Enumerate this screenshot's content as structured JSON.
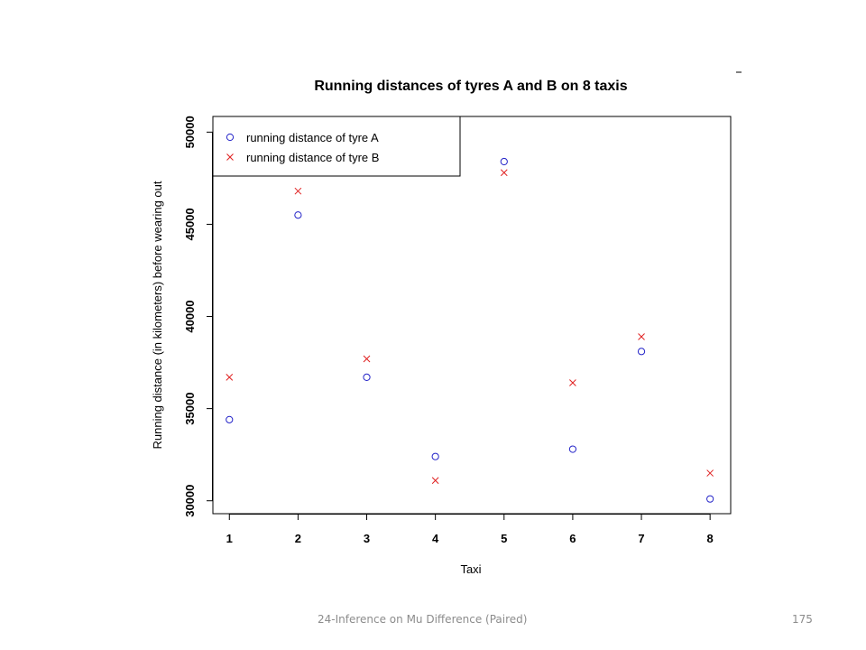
{
  "chart_data": {
    "type": "scatter",
    "title": "Running distances of tyres A and B on 8 taxis",
    "xlabel": "Taxi",
    "ylabel": "Running distance (in kilometers) before wearing out",
    "x": [
      1,
      2,
      3,
      4,
      5,
      6,
      7,
      8
    ],
    "x_ticks": [
      "1",
      "2",
      "3",
      "4",
      "5",
      "6",
      "7",
      "8"
    ],
    "y_ticks": [
      "30000",
      "35000",
      "40000",
      "45000",
      "50000"
    ],
    "xlim": [
      0.76,
      8.3
    ],
    "ylim": [
      29300,
      50850
    ],
    "legend_position": "top-left",
    "grid": false,
    "series": [
      {
        "name": "running distance of tyre A",
        "marker": "circle",
        "color": "#2323c8",
        "values": [
          34400,
          45500,
          36700,
          32400,
          48400,
          32800,
          38100,
          30100
        ]
      },
      {
        "name": "running distance of tyre B",
        "marker": "cross",
        "color": "#e02020",
        "values": [
          36700,
          46800,
          37700,
          31100,
          47800,
          36400,
          38900,
          31500
        ]
      }
    ]
  },
  "footer": {
    "text": "24-Inference on Mu Difference (Paired)",
    "page": "175"
  }
}
